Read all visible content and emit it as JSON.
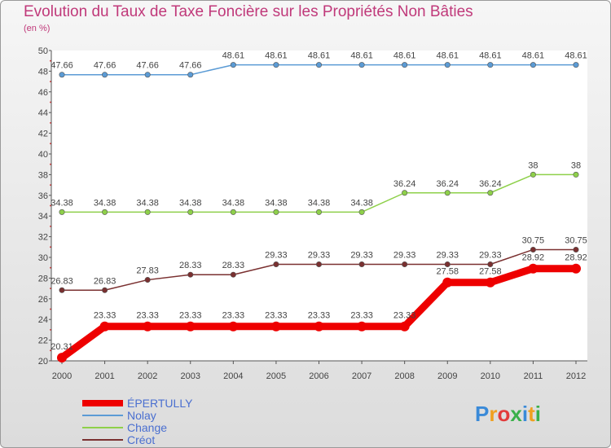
{
  "chart_data": {
    "type": "line",
    "title": "Evolution du Taux de Taxe Foncière sur les Propriétés Non Bâties",
    "ylabel": "(en %)",
    "x": [
      "2000",
      "2001",
      "2002",
      "2003",
      "2004",
      "2005",
      "2006",
      "2007",
      "2008",
      "2009",
      "2010",
      "2011",
      "2012"
    ],
    "ylim": [
      20,
      50
    ],
    "yticks": [
      "20",
      "22",
      "24",
      "26",
      "28",
      "30",
      "32",
      "34",
      "36",
      "38",
      "40",
      "42",
      "44",
      "46",
      "48",
      "50"
    ],
    "series": [
      {
        "name": "Nolay",
        "color": "#5b9bd5",
        "values": [
          47.66,
          47.66,
          47.66,
          47.66,
          48.61,
          48.61,
          48.61,
          48.61,
          48.61,
          48.61,
          48.61,
          48.61,
          48.61
        ],
        "labels": [
          "47.66",
          "47.66",
          "47.66",
          "47.66",
          "48.61",
          "48.61",
          "48.61",
          "48.61",
          "48.61",
          "48.61",
          "48.61",
          "48.61",
          "48.61"
        ]
      },
      {
        "name": "Change",
        "color": "#8ed04a",
        "values": [
          34.38,
          34.38,
          34.38,
          34.38,
          34.38,
          34.38,
          34.38,
          34.38,
          36.24,
          36.24,
          36.24,
          38,
          38
        ],
        "labels": [
          "34.38",
          "34.38",
          "34.38",
          "34.38",
          "34.38",
          "34.38",
          "34.38",
          "34.38",
          "36.24",
          "36.24",
          "36.24",
          "38",
          "38"
        ]
      },
      {
        "name": "Créot",
        "color": "#7a3030",
        "values": [
          26.83,
          26.83,
          27.83,
          28.33,
          28.33,
          29.33,
          29.33,
          29.33,
          29.33,
          29.33,
          29.33,
          30.75,
          30.75
        ],
        "labels": [
          "26.83",
          "26.83",
          "27.83",
          "28.33",
          "28.33",
          "29.33",
          "29.33",
          "29.33",
          "29.33",
          "29.33",
          "29.33",
          "30.75",
          "30.75"
        ]
      },
      {
        "name": "ÉPERTULLY",
        "color": "#ee0000",
        "values": [
          20.31,
          23.33,
          23.33,
          23.33,
          23.33,
          23.33,
          23.33,
          23.33,
          23.33,
          27.58,
          27.58,
          28.92,
          28.92
        ],
        "labels": [
          "20.31",
          "23.33",
          "23.33",
          "23.33",
          "23.33",
          "23.33",
          "23.33",
          "23.33",
          "23.33",
          "27.58",
          "27.58",
          "28.92",
          "28.92"
        ]
      }
    ],
    "legend": [
      "ÉPERTULLY",
      "Nolay",
      "Change",
      "Créot"
    ]
  },
  "logo": {
    "letters": [
      "P",
      "r",
      "o",
      "x",
      "i",
      "t",
      "i"
    ],
    "colors": [
      "#3a8ad8",
      "#f0a020",
      "#e23b3b",
      "#3ab04a",
      "#3a8ad8",
      "#f0a020",
      "#3ab04a"
    ]
  }
}
